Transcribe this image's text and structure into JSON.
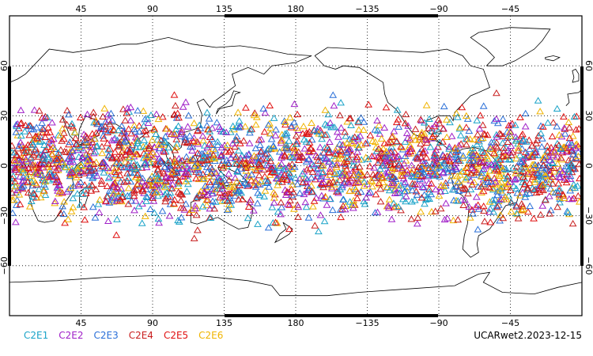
{
  "map": {
    "projection": "cylindrical-equidistant",
    "central_longitude": 180,
    "top_lon_labels": [
      "45",
      "90",
      "135",
      "180",
      "−135",
      "−90",
      "−45"
    ],
    "bottom_lon_labels": [
      "45",
      "90",
      "135",
      "180",
      "−135",
      "−90",
      "−45"
    ],
    "left_lat_labels": [
      "60",
      "30",
      "0",
      "−30",
      "−60"
    ],
    "right_lat_labels": [
      "60",
      "30",
      "0",
      "−30",
      "−60"
    ],
    "grid": "dotted",
    "marker": "triangle-outline"
  },
  "legend": [
    {
      "label": "C2E1",
      "color": "#1aa3c8"
    },
    {
      "label": "C2E2",
      "color": "#a020c8"
    },
    {
      "label": "C2E3",
      "color": "#2a6fd8"
    },
    {
      "label": "C2E4",
      "color": "#c81e1e"
    },
    {
      "label": "C2E5",
      "color": "#e01010"
    },
    {
      "label": "C2E6",
      "color": "#f0b400"
    }
  ],
  "stamp": "UCARwet2.2023-12-15"
}
